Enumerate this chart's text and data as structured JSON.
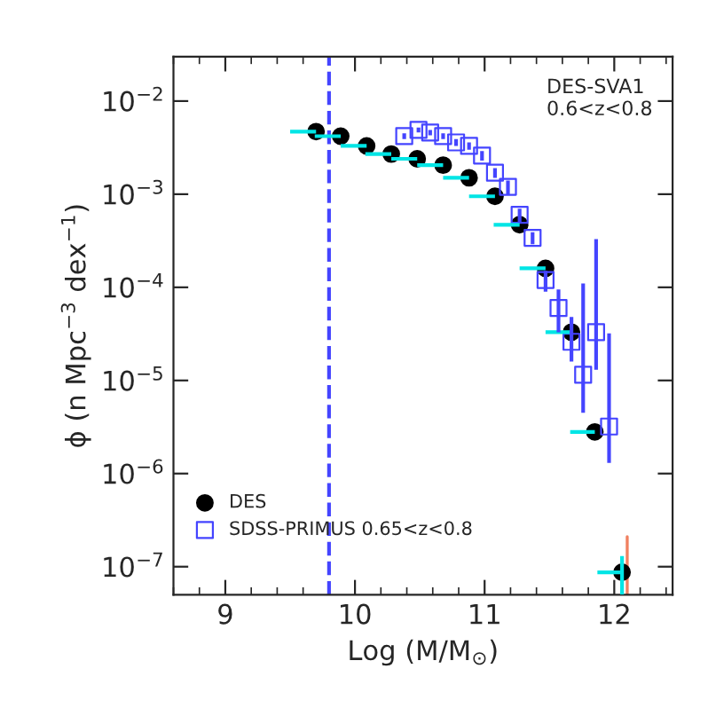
{
  "chart_data": {
    "type": "scatter",
    "xlabel": "Log (M/M$_{⊙}$)",
    "ylabel": "ϕ (n Mpc$^{−3}$ dex$^{−1}$)",
    "annotations": [
      "DES-SVA1\n0.6<z<0.8"
    ],
    "log": "y",
    "grid": false,
    "legend": "bottom left",
    "xlim": [
      8.6,
      12.45
    ],
    "xticks": [
      9,
      10,
      11,
      12
    ],
    "ylim": [
      5e-08,
      0.03
    ],
    "yticks": [
      {
        "value": 1e-07,
        "label": "10$^{−7}$"
      },
      {
        "value": 1e-06,
        "label": "10$^{−6}$"
      },
      {
        "value": 1e-05,
        "label": "10$^{−5}$"
      },
      {
        "value": 0.0001,
        "label": "10$^{−4}$"
      },
      {
        "value": 0.001,
        "label": "10$^{−3}$"
      },
      {
        "value": 0.01,
        "label": "10$^{−2}$"
      }
    ],
    "ref_lines": [
      {
        "axis": "x",
        "value": 9.8,
        "label": null,
        "color": "#4444ff",
        "line_style": "dashed"
      }
    ],
    "series": [
      {
        "name": "DES",
        "color": "#000000",
        "marker": "circle",
        "x": [
          9.7,
          9.89,
          10.09,
          10.28,
          10.48,
          10.68,
          10.88,
          11.08,
          11.27,
          11.47,
          11.67,
          11.85,
          12.06
        ],
        "values": [
          0.0047,
          0.0042,
          0.0033,
          0.0027,
          0.0024,
          0.00205,
          0.0015,
          0.00095,
          0.00047,
          0.00016,
          3.3e-05,
          2.8e-06,
          8.7e-08
        ],
        "xerrors": [
          [
            9.5,
            9.7
          ],
          [
            9.69,
            9.89
          ],
          [
            9.89,
            10.09
          ],
          [
            10.08,
            10.28
          ],
          [
            10.28,
            10.48
          ],
          [
            10.48,
            10.68
          ],
          [
            10.68,
            10.88
          ],
          [
            10.88,
            11.08
          ],
          [
            11.07,
            11.27
          ],
          [
            11.27,
            11.47
          ],
          [
            11.47,
            11.67
          ],
          [
            11.66,
            11.85
          ],
          [
            11.87,
            12.06
          ]
        ],
        "errors": [
          null,
          null,
          null,
          null,
          null,
          null,
          null,
          null,
          null,
          null,
          null,
          null,
          [
            5e-08,
            1.3e-07
          ]
        ]
      },
      {
        "name": "SDSS-PRIMUS 0.65<z<0.8",
        "color": "#4444ff",
        "marker": "square",
        "x": [
          10.38,
          10.49,
          10.58,
          10.68,
          10.78,
          10.88,
          10.98,
          11.08,
          11.18,
          11.27,
          11.37,
          11.47,
          11.57,
          11.67,
          11.76,
          11.86,
          11.96
        ],
        "values": [
          0.0042,
          0.0049,
          0.0046,
          0.0042,
          0.0036,
          0.0033,
          0.0026,
          0.0017,
          0.0012,
          0.0006,
          0.00034,
          0.00012,
          6e-05,
          2.6e-05,
          1.15e-05,
          3.3e-05,
          3.2e-06
        ],
        "errors": [
          [
            0.0039,
            0.0045
          ],
          [
            0.0046,
            0.0052
          ],
          [
            0.0043,
            0.0049
          ],
          [
            0.0039,
            0.0045
          ],
          [
            0.0033,
            0.0039
          ],
          [
            0.003,
            0.0036
          ],
          [
            0.0023,
            0.0029
          ],
          [
            0.0015,
            0.0019
          ],
          [
            0.001,
            0.0014
          ],
          [
            0.0005,
            0.0007
          ],
          [
            0.00029,
            0.00039
          ],
          [
            9e-05,
            0.00015
          ],
          [
            3.3e-05,
            9.5e-05
          ],
          [
            1.6e-05,
            4.8e-05
          ],
          [
            4.5e-06,
            0.00011
          ],
          [
            1.3e-05,
            0.00033
          ],
          [
            1.3e-06,
            3.2e-05
          ]
        ]
      },
      {
        "type": "line",
        "color": "#f08060",
        "x": [
          12.1,
          12.1
        ],
        "values": [
          2.1e-07,
          5e-08
        ]
      }
    ]
  }
}
